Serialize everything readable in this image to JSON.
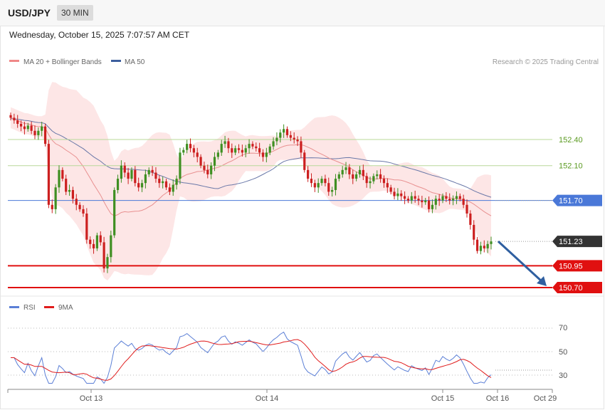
{
  "header": {
    "symbol": "USD/JPY",
    "timeframe": "30 MIN",
    "datetime": "Wednesday, October 15, 2025 7:07:57 AM CET"
  },
  "legend": {
    "ma20": "MA 20 + Bollinger Bands",
    "ma50": "MA 50",
    "copyright": "Research © 2025 Trading Central",
    "rsi": "RSI",
    "rsi_ma": "9MA"
  },
  "colors": {
    "up": "#3f8f22",
    "down": "#cc1f1f",
    "band_fill": "#fde3e3",
    "ma20": "#e89090",
    "ma50": "#6a78a8",
    "rsi": "#5b7fd6",
    "rsi_ma": "#e01c1c",
    "support": "#e01010",
    "pivot": "#4a78d8",
    "resistance": "#b8d89a",
    "current": "#333333",
    "arrow": "#2f5fa0"
  },
  "chart_data": [
    {
      "type": "candlestick",
      "title": "",
      "ylim": [
        150.6,
        152.8
      ],
      "x_ticks": [
        "Oct 13",
        "Oct 14",
        "Oct 15",
        "Oct 16",
        "Oct 29"
      ],
      "overlays": [
        "MA 20 + Bollinger Bands",
        "MA 50"
      ],
      "levels": [
        {
          "label": "152.40",
          "value": 152.4,
          "kind": "resistance"
        },
        {
          "label": "152.10",
          "value": 152.1,
          "kind": "resistance"
        },
        {
          "label": "151.70",
          "value": 151.7,
          "kind": "pivot"
        },
        {
          "label": "151.23",
          "value": 151.23,
          "kind": "current"
        },
        {
          "label": "150.95",
          "value": 150.95,
          "kind": "support"
        },
        {
          "label": "150.70",
          "value": 150.7,
          "kind": "support"
        }
      ],
      "forecast": {
        "from": 151.23,
        "to": 150.7
      },
      "closes": [
        152.65,
        152.62,
        152.58,
        152.55,
        152.52,
        152.56,
        152.5,
        152.45,
        152.5,
        152.55,
        152.35,
        151.65,
        151.6,
        151.85,
        152.05,
        151.95,
        151.8,
        151.82,
        151.72,
        151.65,
        151.6,
        151.55,
        151.25,
        151.2,
        151.15,
        151.3,
        151.22,
        150.92,
        151.05,
        151.3,
        151.82,
        151.95,
        152.1,
        152.02,
        151.95,
        152.05,
        151.9,
        151.85,
        151.9,
        152.0,
        152.05,
        152.02,
        151.95,
        151.9,
        151.92,
        151.85,
        151.8,
        151.88,
        151.95,
        152.25,
        152.28,
        152.35,
        152.3,
        152.25,
        152.2,
        152.1,
        152.05,
        152.0,
        152.1,
        152.2,
        152.25,
        152.35,
        152.38,
        152.3,
        152.25,
        152.3,
        152.28,
        152.25,
        152.3,
        152.35,
        152.32,
        152.3,
        152.25,
        152.2,
        152.25,
        152.32,
        152.38,
        152.42,
        152.48,
        152.52,
        152.45,
        152.42,
        152.4,
        152.38,
        152.25,
        152.05,
        151.95,
        151.9,
        151.85,
        151.9,
        151.95,
        151.9,
        151.8,
        151.82,
        151.95,
        152.0,
        152.05,
        152.08,
        152.0,
        151.95,
        152.0,
        152.05,
        151.98,
        151.9,
        151.92,
        151.98,
        152.0,
        151.95,
        151.9,
        151.85,
        151.8,
        151.75,
        151.78,
        151.75,
        151.72,
        151.7,
        151.75,
        151.72,
        151.7,
        151.68,
        151.7,
        151.6,
        151.65,
        151.72,
        151.7,
        151.75,
        151.72,
        151.7,
        151.72,
        151.75,
        151.72,
        151.65,
        151.55,
        151.42,
        151.25,
        151.12,
        151.18,
        151.15,
        151.2,
        151.23
      ],
      "rsi": {
        "ylim": [
          20,
          80
        ],
        "levels": [
          70,
          50,
          30
        ],
        "series": [
          "RSI",
          "9MA"
        ]
      }
    }
  ],
  "axis": {
    "ticks": [
      "Oct 13",
      "Oct 14",
      "Oct 15",
      "Oct 16",
      "Oct 29"
    ],
    "rsi_levels": [
      "70",
      "50",
      "30"
    ]
  }
}
